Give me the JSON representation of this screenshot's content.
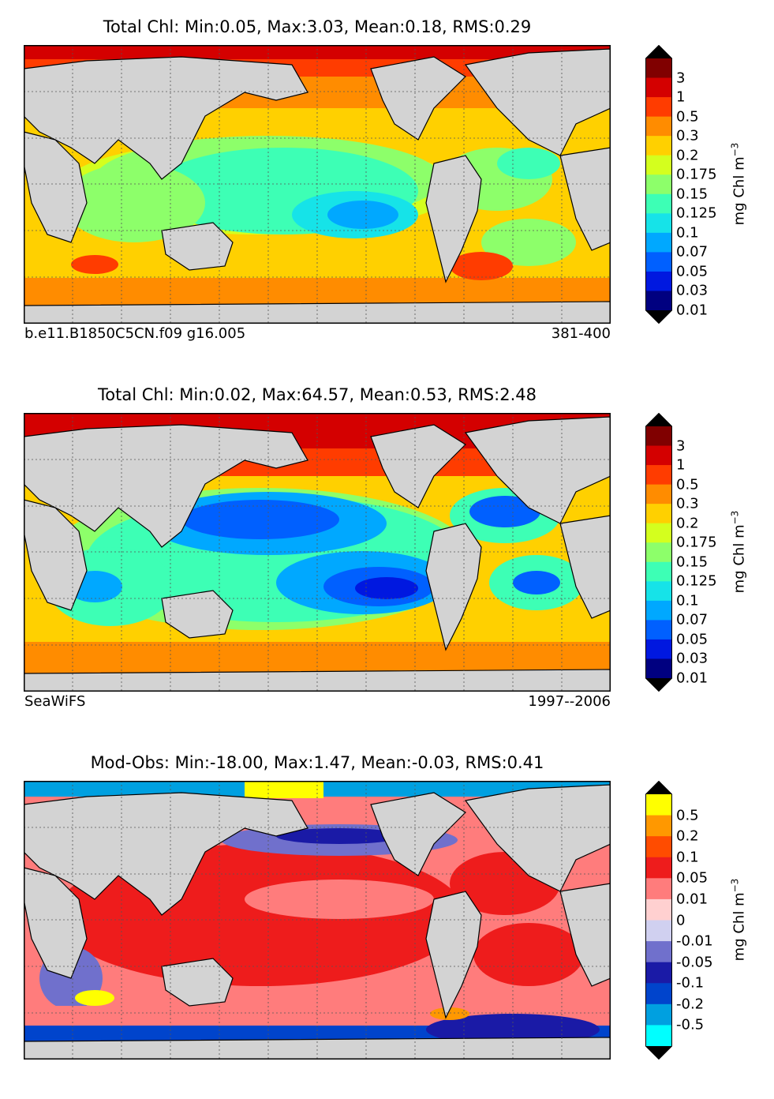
{
  "land_color": "#d3d3d3",
  "panels": [
    {
      "title": "Total Chl: Min:0.05, Max:3.03, Mean:0.18, RMS:0.29",
      "bottom_left": "b.e11.B1850C5CN.f09 g16.005",
      "bottom_right": "381-400",
      "colorbar": {
        "unit": "mg Chl m",
        "unit_exp": "−3",
        "ticks": [
          "3",
          "1",
          "0.5",
          "0.3",
          "0.2",
          "0.175",
          "0.15",
          "0.125",
          "0.1",
          "0.07",
          "0.05",
          "0.03",
          "0.01"
        ],
        "colors": [
          "#800000",
          "#d40000",
          "#ff3c00",
          "#ff8c00",
          "#ffd000",
          "#d4ff1e",
          "#8dff6a",
          "#3dffb5",
          "#16e3e8",
          "#00a8ff",
          "#0060ff",
          "#0018e0",
          "#000080"
        ],
        "top_ext": "#000000",
        "bottom_ext": "#000000"
      }
    },
    {
      "title": "Total Chl: Min:0.02, Max:64.57, Mean:0.53, RMS:2.48",
      "bottom_left": "SeaWiFS",
      "bottom_right": "1997--2006",
      "colorbar": {
        "unit": "mg Chl m",
        "unit_exp": "−3",
        "ticks": [
          "3",
          "1",
          "0.5",
          "0.3",
          "0.2",
          "0.175",
          "0.15",
          "0.125",
          "0.1",
          "0.07",
          "0.05",
          "0.03",
          "0.01"
        ],
        "colors": [
          "#800000",
          "#d40000",
          "#ff3c00",
          "#ff8c00",
          "#ffd000",
          "#d4ff1e",
          "#8dff6a",
          "#3dffb5",
          "#16e3e8",
          "#00a8ff",
          "#0060ff",
          "#0018e0",
          "#000080"
        ],
        "top_ext": "#000000",
        "bottom_ext": "#000000"
      }
    },
    {
      "title": "Mod-Obs: Min:-18.00, Max:1.47, Mean:-0.03, RMS:0.41",
      "bottom_left": "",
      "bottom_right": "",
      "colorbar": {
        "unit": "mg Chl m",
        "unit_exp": "−3",
        "ticks": [
          "0.5",
          "0.2",
          "0.1",
          "0.05",
          "0.01",
          "0",
          "-0.01",
          "-0.05",
          "-0.1",
          "-0.2",
          "-0.5"
        ],
        "colors": [
          "#ffff00",
          "#ff9800",
          "#ff4c00",
          "#ee1c1c",
          "#ff7c7c",
          "#ffd0d0",
          "#d0d0f0",
          "#7070cc",
          "#1a1aa6",
          "#0044cc",
          "#00a0e0",
          "#00ffff"
        ],
        "top_ext": "#000000",
        "bottom_ext": "#000000"
      }
    }
  ]
}
